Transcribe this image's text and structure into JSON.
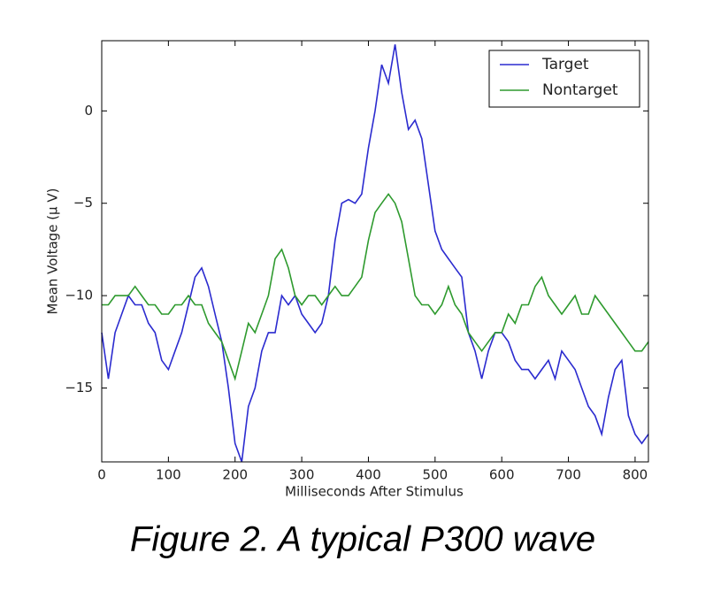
{
  "chart_data": {
    "type": "line",
    "xlabel": "Milliseconds After Stimulus",
    "ylabel": "Mean Voltage (μ V)",
    "caption": "Figure 2. A typical P300 wave",
    "legend": "upper right",
    "x": [
      0,
      10,
      20,
      30,
      40,
      50,
      60,
      70,
      80,
      90,
      100,
      110,
      120,
      130,
      140,
      150,
      160,
      170,
      180,
      190,
      200,
      210,
      220,
      230,
      240,
      250,
      260,
      270,
      280,
      290,
      300,
      310,
      320,
      330,
      340,
      350,
      360,
      370,
      380,
      390,
      400,
      410,
      420,
      430,
      440,
      450,
      460,
      470,
      480,
      490,
      500,
      510,
      520,
      530,
      540,
      550,
      560,
      570,
      580,
      590,
      600,
      610,
      620,
      630,
      640,
      650,
      660,
      670,
      680,
      690,
      700,
      710,
      720,
      730,
      740,
      750,
      760,
      770,
      780,
      790,
      800,
      810,
      820
    ],
    "series": [
      {
        "name": "Target",
        "color": "#2b2bcf",
        "values": [
          -12,
          -14.5,
          -12,
          -11,
          -10,
          -10.5,
          -10.5,
          -11.5,
          -12,
          -13.5,
          -14,
          -13,
          -12,
          -10.5,
          -9,
          -8.5,
          -9.5,
          -11,
          -12.5,
          -15,
          -18,
          -19,
          -16,
          -15,
          -13,
          -12,
          -12,
          -10,
          -10.5,
          -10,
          -11,
          -11.5,
          -12,
          -11.5,
          -10,
          -7,
          -5,
          -4.8,
          -5,
          -4.5,
          -2,
          0,
          2.5,
          1.5,
          3.6,
          1,
          -1,
          -0.5,
          -1.5,
          -4,
          -6.5,
          -7.5,
          -8,
          -8.5,
          -9,
          -12,
          -13,
          -14.5,
          -13,
          -12,
          -12,
          -12.5,
          -13.5,
          -14,
          -14,
          -14.5,
          -14,
          -13.5,
          -14.5,
          -13,
          -13.5,
          -14,
          -15,
          -16,
          -16.5,
          -17.5,
          -15.5,
          -14,
          -13.5,
          -16.5,
          -17.5,
          -18,
          -17.5
        ]
      },
      {
        "name": "Nontarget",
        "color": "#2e9a2e",
        "values": [
          -10.5,
          -10.5,
          -10,
          -10,
          -10,
          -9.5,
          -10,
          -10.5,
          -10.5,
          -11,
          -11,
          -10.5,
          -10.5,
          -10,
          -10.5,
          -10.5,
          -11.5,
          -12,
          -12.5,
          -13.5,
          -14.5,
          -13,
          -11.5,
          -12,
          -11,
          -10,
          -8,
          -7.5,
          -8.5,
          -10,
          -10.5,
          -10,
          -10,
          -10.5,
          -10,
          -9.5,
          -10,
          -10,
          -9.5,
          -9,
          -7,
          -5.5,
          -5,
          -4.5,
          -5,
          -6,
          -8,
          -10,
          -10.5,
          -10.5,
          -11,
          -10.5,
          -9.5,
          -10.5,
          -11,
          -12,
          -12.5,
          -13,
          -12.5,
          -12,
          -12,
          -11,
          -11.5,
          -10.5,
          -10.5,
          -9.5,
          -9,
          -10,
          -10.5,
          -11,
          -10.5,
          -10,
          -11,
          -11,
          -10,
          -10.5,
          -11,
          -11.5,
          -12,
          -12.5,
          -13,
          -13,
          -12.5
        ]
      }
    ],
    "xlim": [
      0,
      820
    ],
    "ylim": [
      -19,
      3.8
    ],
    "xticks": [
      0,
      100,
      200,
      300,
      400,
      500,
      600,
      700,
      800
    ],
    "yticks": [
      {
        "value": -15,
        "label": "−15"
      },
      {
        "value": -10,
        "label": "−10"
      },
      {
        "value": -5,
        "label": "−5"
      },
      0
    ]
  }
}
